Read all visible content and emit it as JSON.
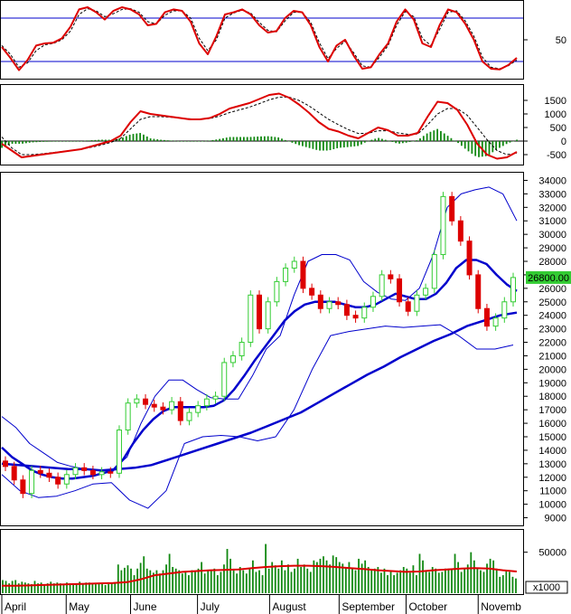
{
  "colors": {
    "up": "#33cc33",
    "down": "#dd0000",
    "ma_short": "#0000cc",
    "ma_long": "#0000cc",
    "band": "#0000cc",
    "osc_main": "#dd0000",
    "osc_signal": "#000000",
    "histogram": "#118811",
    "volume_bar": "#118811",
    "volume_ma": "#dd0000",
    "last_price_bg": "#33cc33"
  },
  "chart_data": [
    {
      "panel": "stochastic",
      "type": "line",
      "yticks": [
        "50"
      ],
      "ylim": [
        0,
        100
      ],
      "levels": [
        80,
        20
      ],
      "series": [
        {
          "role": "main",
          "values": [
            40,
            25,
            8,
            22,
            42,
            45,
            46,
            52,
            68,
            92,
            95,
            88,
            78,
            90,
            95,
            92,
            85,
            70,
            72,
            88,
            92,
            90,
            75,
            45,
            30,
            55,
            85,
            88,
            92,
            85,
            70,
            60,
            62,
            80,
            90,
            88,
            70,
            40,
            20,
            42,
            50,
            28,
            10,
            12,
            30,
            45,
            75,
            92,
            78,
            45,
            40,
            70,
            92,
            88,
            72,
            50,
            20,
            10,
            9,
            15,
            25
          ]
        },
        {
          "role": "signal",
          "values": [
            42,
            30,
            12,
            18,
            35,
            43,
            45,
            50,
            62,
            85,
            93,
            90,
            82,
            86,
            92,
            93,
            88,
            75,
            72,
            84,
            90,
            90,
            80,
            52,
            35,
            50,
            80,
            87,
            91,
            87,
            74,
            63,
            61,
            76,
            88,
            88,
            74,
            46,
            24,
            38,
            48,
            32,
            14,
            12,
            26,
            42,
            70,
            89,
            82,
            52,
            42,
            64,
            88,
            90,
            76,
            55,
            26,
            12,
            10,
            14,
            22
          ]
        }
      ]
    },
    {
      "panel": "macd",
      "type": "line",
      "yticks": [
        "1500",
        "1000",
        "500",
        "0",
        "-500"
      ],
      "ylim": [
        -800,
        2000
      ],
      "series": [
        {
          "role": "main",
          "values": [
            -100,
            -350,
            -600,
            -550,
            -500,
            -450,
            -400,
            -350,
            -300,
            -200,
            -100,
            0,
            200,
            700,
            1100,
            1000,
            950,
            900,
            850,
            800,
            800,
            850,
            1000,
            1200,
            1300,
            1400,
            1550,
            1700,
            1750,
            1600,
            1350,
            1050,
            700,
            450,
            350,
            200,
            100,
            300,
            500,
            400,
            200,
            200,
            300,
            900,
            1450,
            1400,
            1150,
            600,
            -100,
            -500,
            -650,
            -600,
            -400
          ]
        },
        {
          "role": "signal",
          "values": [
            150,
            -250,
            -500,
            -500,
            -470,
            -430,
            -390,
            -350,
            -300,
            -230,
            -150,
            -50,
            100,
            450,
            800,
            900,
            900,
            880,
            850,
            820,
            810,
            830,
            920,
            1050,
            1150,
            1250,
            1380,
            1520,
            1620,
            1620,
            1500,
            1300,
            1050,
            800,
            600,
            420,
            280,
            290,
            380,
            380,
            300,
            250,
            260,
            600,
            1000,
            1200,
            1200,
            950,
            500,
            50,
            -350,
            -500,
            -450
          ]
        },
        {
          "role": "histogram",
          "values": [
            -250,
            -100,
            -100,
            -50,
            -30,
            -20,
            -10,
            0,
            0,
            30,
            50,
            50,
            100,
            250,
            300,
            100,
            50,
            20,
            0,
            -20,
            -10,
            20,
            80,
            150,
            150,
            150,
            170,
            180,
            130,
            -20,
            -150,
            -250,
            -350,
            -350,
            -250,
            -220,
            -180,
            10,
            120,
            20,
            -100,
            -50,
            40,
            300,
            450,
            200,
            -50,
            -350,
            -600,
            -550,
            -300,
            -100,
            50
          ]
        }
      ]
    },
    {
      "panel": "price",
      "type": "candlestick",
      "yticks": [
        "34000",
        "33000",
        "32000",
        "31000",
        "30000",
        "29000",
        "28000",
        "27000",
        "26000",
        "25000",
        "24000",
        "23000",
        "22000",
        "21000",
        "20000",
        "19000",
        "18000",
        "17000",
        "16000",
        "15000",
        "14000",
        "13000",
        "12000",
        "11000",
        "10000",
        "9000"
      ],
      "ylim": [
        8500,
        34500
      ],
      "last_price": "26800.00",
      "close": [
        12800,
        11800,
        10800,
        12500,
        12300,
        12000,
        11500,
        12200,
        12700,
        12500,
        12200,
        12400,
        12300,
        15500,
        17500,
        17800,
        17400,
        17200,
        17000,
        17600,
        16200,
        16800,
        17300,
        17800,
        18000,
        20500,
        21000,
        22000,
        25500,
        23000,
        25000,
        26500,
        27500,
        28000,
        26000,
        25500,
        24500,
        25000,
        24800,
        24000,
        23800,
        24600,
        25400,
        27000,
        26700,
        25000,
        24300,
        25500,
        26000,
        28500,
        32800,
        31000,
        29500,
        27000,
        24500,
        23200,
        23800,
        25000,
        26800
      ],
      "ma_short": [
        14200,
        13500,
        13000,
        12500,
        12200,
        12000,
        11900,
        11900,
        12000,
        12100,
        12300,
        12500,
        13300,
        14500,
        15500,
        16300,
        16900,
        17200,
        17200,
        17200,
        17200,
        17300,
        17700,
        18500,
        19500,
        20600,
        21600,
        22600,
        23600,
        24300,
        24800,
        25000,
        25000,
        25000,
        24800,
        24600,
        24600,
        24800,
        25200,
        25600,
        25400,
        25200,
        25200,
        25600,
        26400,
        27500,
        28100,
        28100,
        27800,
        27000,
        26300,
        25800
      ],
      "ma_long": [
        13000,
        12900,
        12800,
        12700,
        12600,
        12600,
        12500,
        12600,
        12700,
        12900,
        13300,
        13700,
        14100,
        14500,
        14900,
        15300,
        15800,
        16300,
        16800,
        17500,
        18200,
        18900,
        19600,
        20200,
        20900,
        21500,
        22100,
        22600,
        23200,
        23600,
        24000,
        24200
      ],
      "band_upper": [
        16500,
        15700,
        14500,
        13800,
        13100,
        12800,
        12600,
        12500,
        12600,
        13500,
        16000,
        18000,
        19200,
        19200,
        18500,
        17900,
        17800,
        17800,
        19500,
        21500,
        22500,
        25500,
        28000,
        28500,
        28500,
        28100,
        26500,
        25700,
        25200,
        25100,
        26000,
        28500,
        32000,
        33000,
        33300,
        33500,
        33000,
        31000
      ],
      "band_lower": [
        12200,
        11000,
        10500,
        10600,
        11000,
        11500,
        11600,
        10300,
        9700,
        11000,
        14500,
        15000,
        15100,
        15000,
        14700,
        15000,
        17000,
        20000,
        22500,
        22800,
        23000,
        23200,
        23100,
        23200,
        23300,
        22500,
        21500,
        21500,
        21800
      ]
    },
    {
      "panel": "volume",
      "type": "bar",
      "yticks": [
        "50000"
      ],
      "units_label": "x1000",
      "ylim": [
        0,
        75000
      ],
      "values": [
        16000,
        15000,
        12000,
        15000,
        16000,
        12000,
        14000,
        13000,
        12000,
        11000,
        15000,
        12000,
        13000,
        11000,
        12000,
        14000,
        12000,
        13000,
        12000,
        11000,
        13000,
        12000,
        12000,
        11000,
        14000,
        12000,
        13000,
        13000,
        12000,
        11000,
        12000,
        12000,
        10000,
        11000,
        13000,
        12000,
        35000,
        28000,
        31000,
        34000,
        30000,
        22000,
        30000,
        37000,
        45000,
        30000,
        28000,
        25000,
        28000,
        24000,
        28000,
        35000,
        48000,
        32000,
        30000,
        28000,
        24000,
        27000,
        22000,
        28000,
        26000,
        30000,
        38000,
        24000,
        28000,
        27000,
        30000,
        22000,
        26000,
        35000,
        54000,
        42000,
        28000,
        24000,
        32000,
        28000,
        24000,
        30000,
        40000,
        26000,
        28000,
        22000,
        60000,
        30000,
        38000,
        34000,
        30000,
        40000,
        28000,
        35000,
        26000,
        30000,
        42000,
        32000,
        35000,
        30000,
        26000,
        40000,
        38000,
        42000,
        45000,
        40000,
        35000,
        46000,
        44000,
        38000,
        36000,
        32000,
        38000,
        30000,
        28000,
        42000,
        36000,
        40000,
        32000,
        28000,
        30000,
        32000,
        25000,
        30000,
        22000,
        26000,
        22000,
        25000,
        28000,
        32000,
        30000,
        25000,
        34000,
        22000,
        48000,
        40000,
        28000,
        26000,
        32000,
        30000,
        25000,
        26000,
        30000,
        30000,
        30000,
        48000,
        38000,
        26000,
        30000,
        35000,
        50000,
        40000,
        30000,
        28000,
        26000,
        36000,
        42000,
        40000,
        30000,
        20000,
        22000,
        28000,
        26000,
        20000,
        18000
      ],
      "ma": [
        9000,
        9200,
        9500,
        10000,
        10500,
        11000,
        11500,
        12000,
        12500,
        13500,
        17000,
        22000,
        24000,
        26000,
        27000,
        28000,
        28500,
        29000,
        30500,
        32000,
        33000,
        33500,
        33500,
        33000,
        32000,
        30500,
        29500,
        28000,
        27000,
        26000,
        26500,
        28000,
        29000,
        30000,
        30500,
        30000,
        28000,
        26500
      ]
    }
  ],
  "x_axis": {
    "months": [
      "April",
      "May",
      "June",
      "July",
      "August",
      "September",
      "October",
      "Novemb"
    ]
  }
}
